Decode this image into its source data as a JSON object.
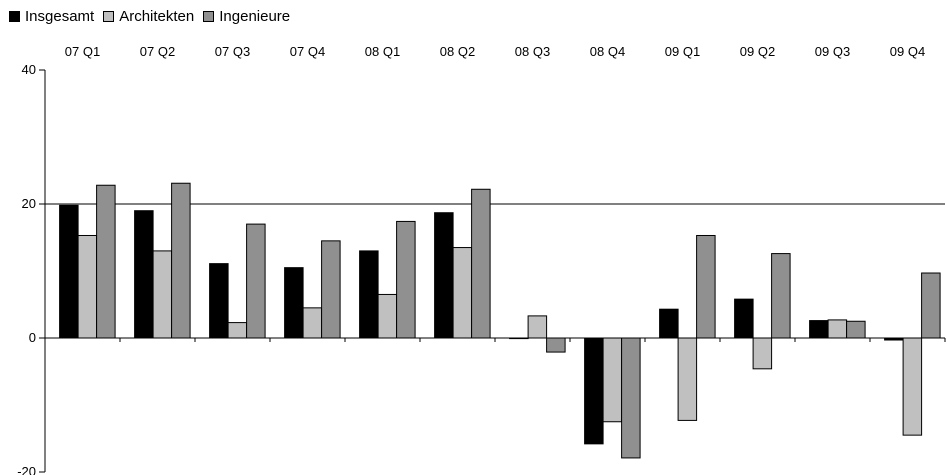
{
  "chart_data": {
    "type": "bar",
    "title": "",
    "xlabel": "",
    "ylabel": "",
    "categories": [
      "07 Q1",
      "07 Q2",
      "07 Q3",
      "07 Q4",
      "08 Q1",
      "08 Q2",
      "08 Q3",
      "08 Q4",
      "09 Q1",
      "09 Q2",
      "09 Q3",
      "09 Q4"
    ],
    "series": [
      {
        "name": "Insgesamt",
        "values": [
          19.8,
          19.0,
          11.1,
          10.5,
          13.0,
          18.7,
          0.0,
          -15.8,
          4.3,
          5.8,
          2.6,
          -0.3
        ],
        "color": "#000000"
      },
      {
        "name": "Architekten",
        "values": [
          15.3,
          13.0,
          2.3,
          4.5,
          6.5,
          13.5,
          3.3,
          -12.5,
          -12.3,
          -4.6,
          2.7,
          -14.5
        ],
        "color": "#c0c0c0"
      },
      {
        "name": "Ingenieure",
        "values": [
          22.8,
          23.1,
          17.0,
          14.5,
          17.4,
          22.2,
          -2.1,
          -17.9,
          15.3,
          12.6,
          2.5,
          9.7
        ],
        "color": "#909090"
      }
    ],
    "ylim": [
      -20,
      40
    ],
    "yticks": [
      40,
      20,
      0,
      -20
    ],
    "gridlines": [
      20
    ],
    "category_axis_position": "top",
    "legend_position": "top-left"
  }
}
